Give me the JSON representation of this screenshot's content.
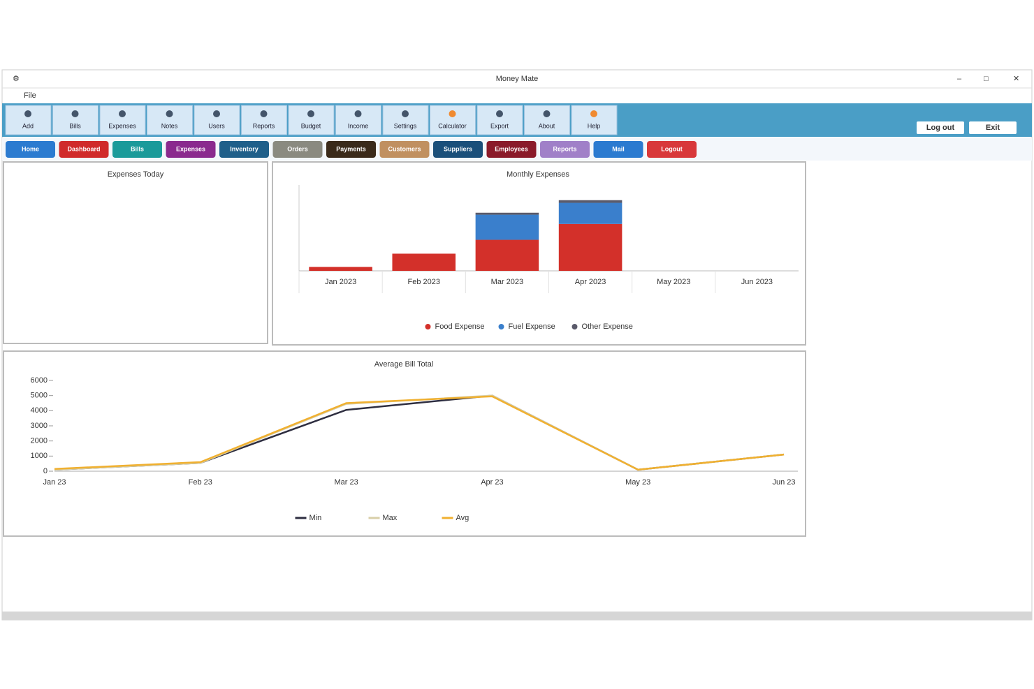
{
  "window": {
    "title": "Money Mate",
    "menu": [
      "File"
    ]
  },
  "toolbar": {
    "buttons": [
      "Add",
      "Bills",
      "Expenses",
      "Notes",
      "Users",
      "Reports",
      "Budget",
      "Income",
      "Settings",
      "Calculator",
      "Export",
      "About",
      "Help"
    ],
    "right_buttons": [
      "Log out",
      "Exit"
    ]
  },
  "tabs": [
    "Home",
    "Dashboard",
    "Bills",
    "Expenses",
    "Inventory",
    "Orders",
    "Payments",
    "Customers",
    "Suppliers",
    "Employees",
    "Reports",
    "Mail",
    "Logout"
  ],
  "empty_panel": {
    "title": "Expenses Today"
  },
  "chart_data": [
    {
      "type": "bar",
      "title": "Monthly Expenses",
      "stacked": true,
      "categories": [
        "Jan 2023",
        "Feb 2023",
        "Mar 2023",
        "Apr 2023",
        "May 2023",
        "Jun 2023"
      ],
      "series": [
        {
          "name": "Food Expense",
          "color": "#d3302a",
          "values": [
            6,
            26,
            47,
            71,
            0,
            0
          ]
        },
        {
          "name": "Fuel Expense",
          "color": "#3a7fcc",
          "values": [
            0,
            0,
            38,
            32,
            0,
            0
          ]
        },
        {
          "name": "Other Expense",
          "color": "#5a5a6a",
          "values": [
            0,
            0,
            3,
            4,
            0,
            0
          ]
        }
      ],
      "ylim": [
        0,
        130
      ]
    },
    {
      "type": "line",
      "title": "Average Bill Total",
      "categories": [
        "Jan 23",
        "Feb 23",
        "Mar 23",
        "Apr 23",
        "May 23",
        "Jun 23"
      ],
      "series": [
        {
          "name": "Min",
          "color": "#2e2e40",
          "values": [
            100,
            550,
            4050,
            5000,
            100,
            1100
          ]
        },
        {
          "name": "Max",
          "color": "#d8cfa8",
          "values": [
            100,
            550,
            4450,
            5000,
            100,
            1100
          ]
        },
        {
          "name": "Avg",
          "color": "#f0b030",
          "values": [
            150,
            600,
            4500,
            4950,
            100,
            1100
          ]
        }
      ],
      "ylim": [
        0,
        6000
      ],
      "yticks": [
        0,
        1000,
        2000,
        3000,
        4000,
        5000,
        6000
      ]
    }
  ]
}
